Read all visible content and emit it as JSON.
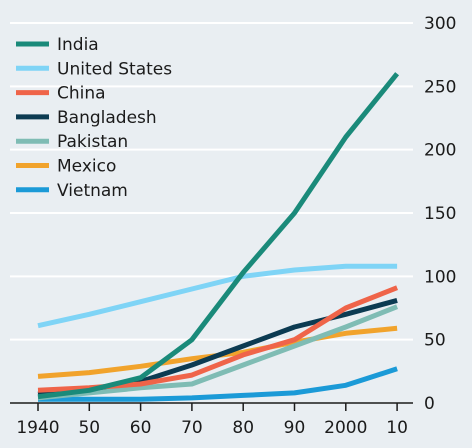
{
  "chart_data": {
    "type": "line",
    "title": "",
    "xlabel": "",
    "ylabel": "",
    "x": [
      1940,
      1950,
      1960,
      1970,
      1980,
      1990,
      2000,
      2010
    ],
    "x_tick_labels": [
      "1940",
      "50",
      "60",
      "70",
      "80",
      "90",
      "2000",
      "10"
    ],
    "ylim": [
      0,
      300
    ],
    "y_ticks": [
      0,
      50,
      100,
      150,
      200,
      250,
      300
    ],
    "y_tick_labels": [
      "0",
      "50",
      "100",
      "150",
      "200",
      "250",
      "300"
    ],
    "y_axis_side": "right",
    "grid": "horizontal",
    "legend_position": "top-left",
    "series": [
      {
        "name": "India",
        "color": "#1a8a7a",
        "values": [
          5,
          10,
          20,
          50,
          103,
          150,
          210,
          260
        ]
      },
      {
        "name": "United States",
        "color": "#7fd4f6",
        "values": [
          61,
          70,
          80,
          90,
          100,
          105,
          108,
          108
        ]
      },
      {
        "name": "China",
        "color": "#ef6449",
        "values": [
          10,
          12,
          15,
          22,
          38,
          50,
          75,
          91
        ]
      },
      {
        "name": "Bangladesh",
        "color": "#0c3b52",
        "values": [
          7,
          11,
          17,
          30,
          45,
          60,
          70,
          81
        ]
      },
      {
        "name": "Pakistan",
        "color": "#7fbcb4",
        "values": [
          4,
          8,
          12,
          15,
          30,
          45,
          60,
          76
        ]
      },
      {
        "name": "Mexico",
        "color": "#f1a32c",
        "values": [
          21,
          24,
          29,
          35,
          40,
          48,
          55,
          59
        ]
      },
      {
        "name": "Vietnam",
        "color": "#1b9ad7",
        "values": [
          3,
          3,
          3,
          4,
          6,
          8,
          14,
          27
        ]
      }
    ]
  }
}
